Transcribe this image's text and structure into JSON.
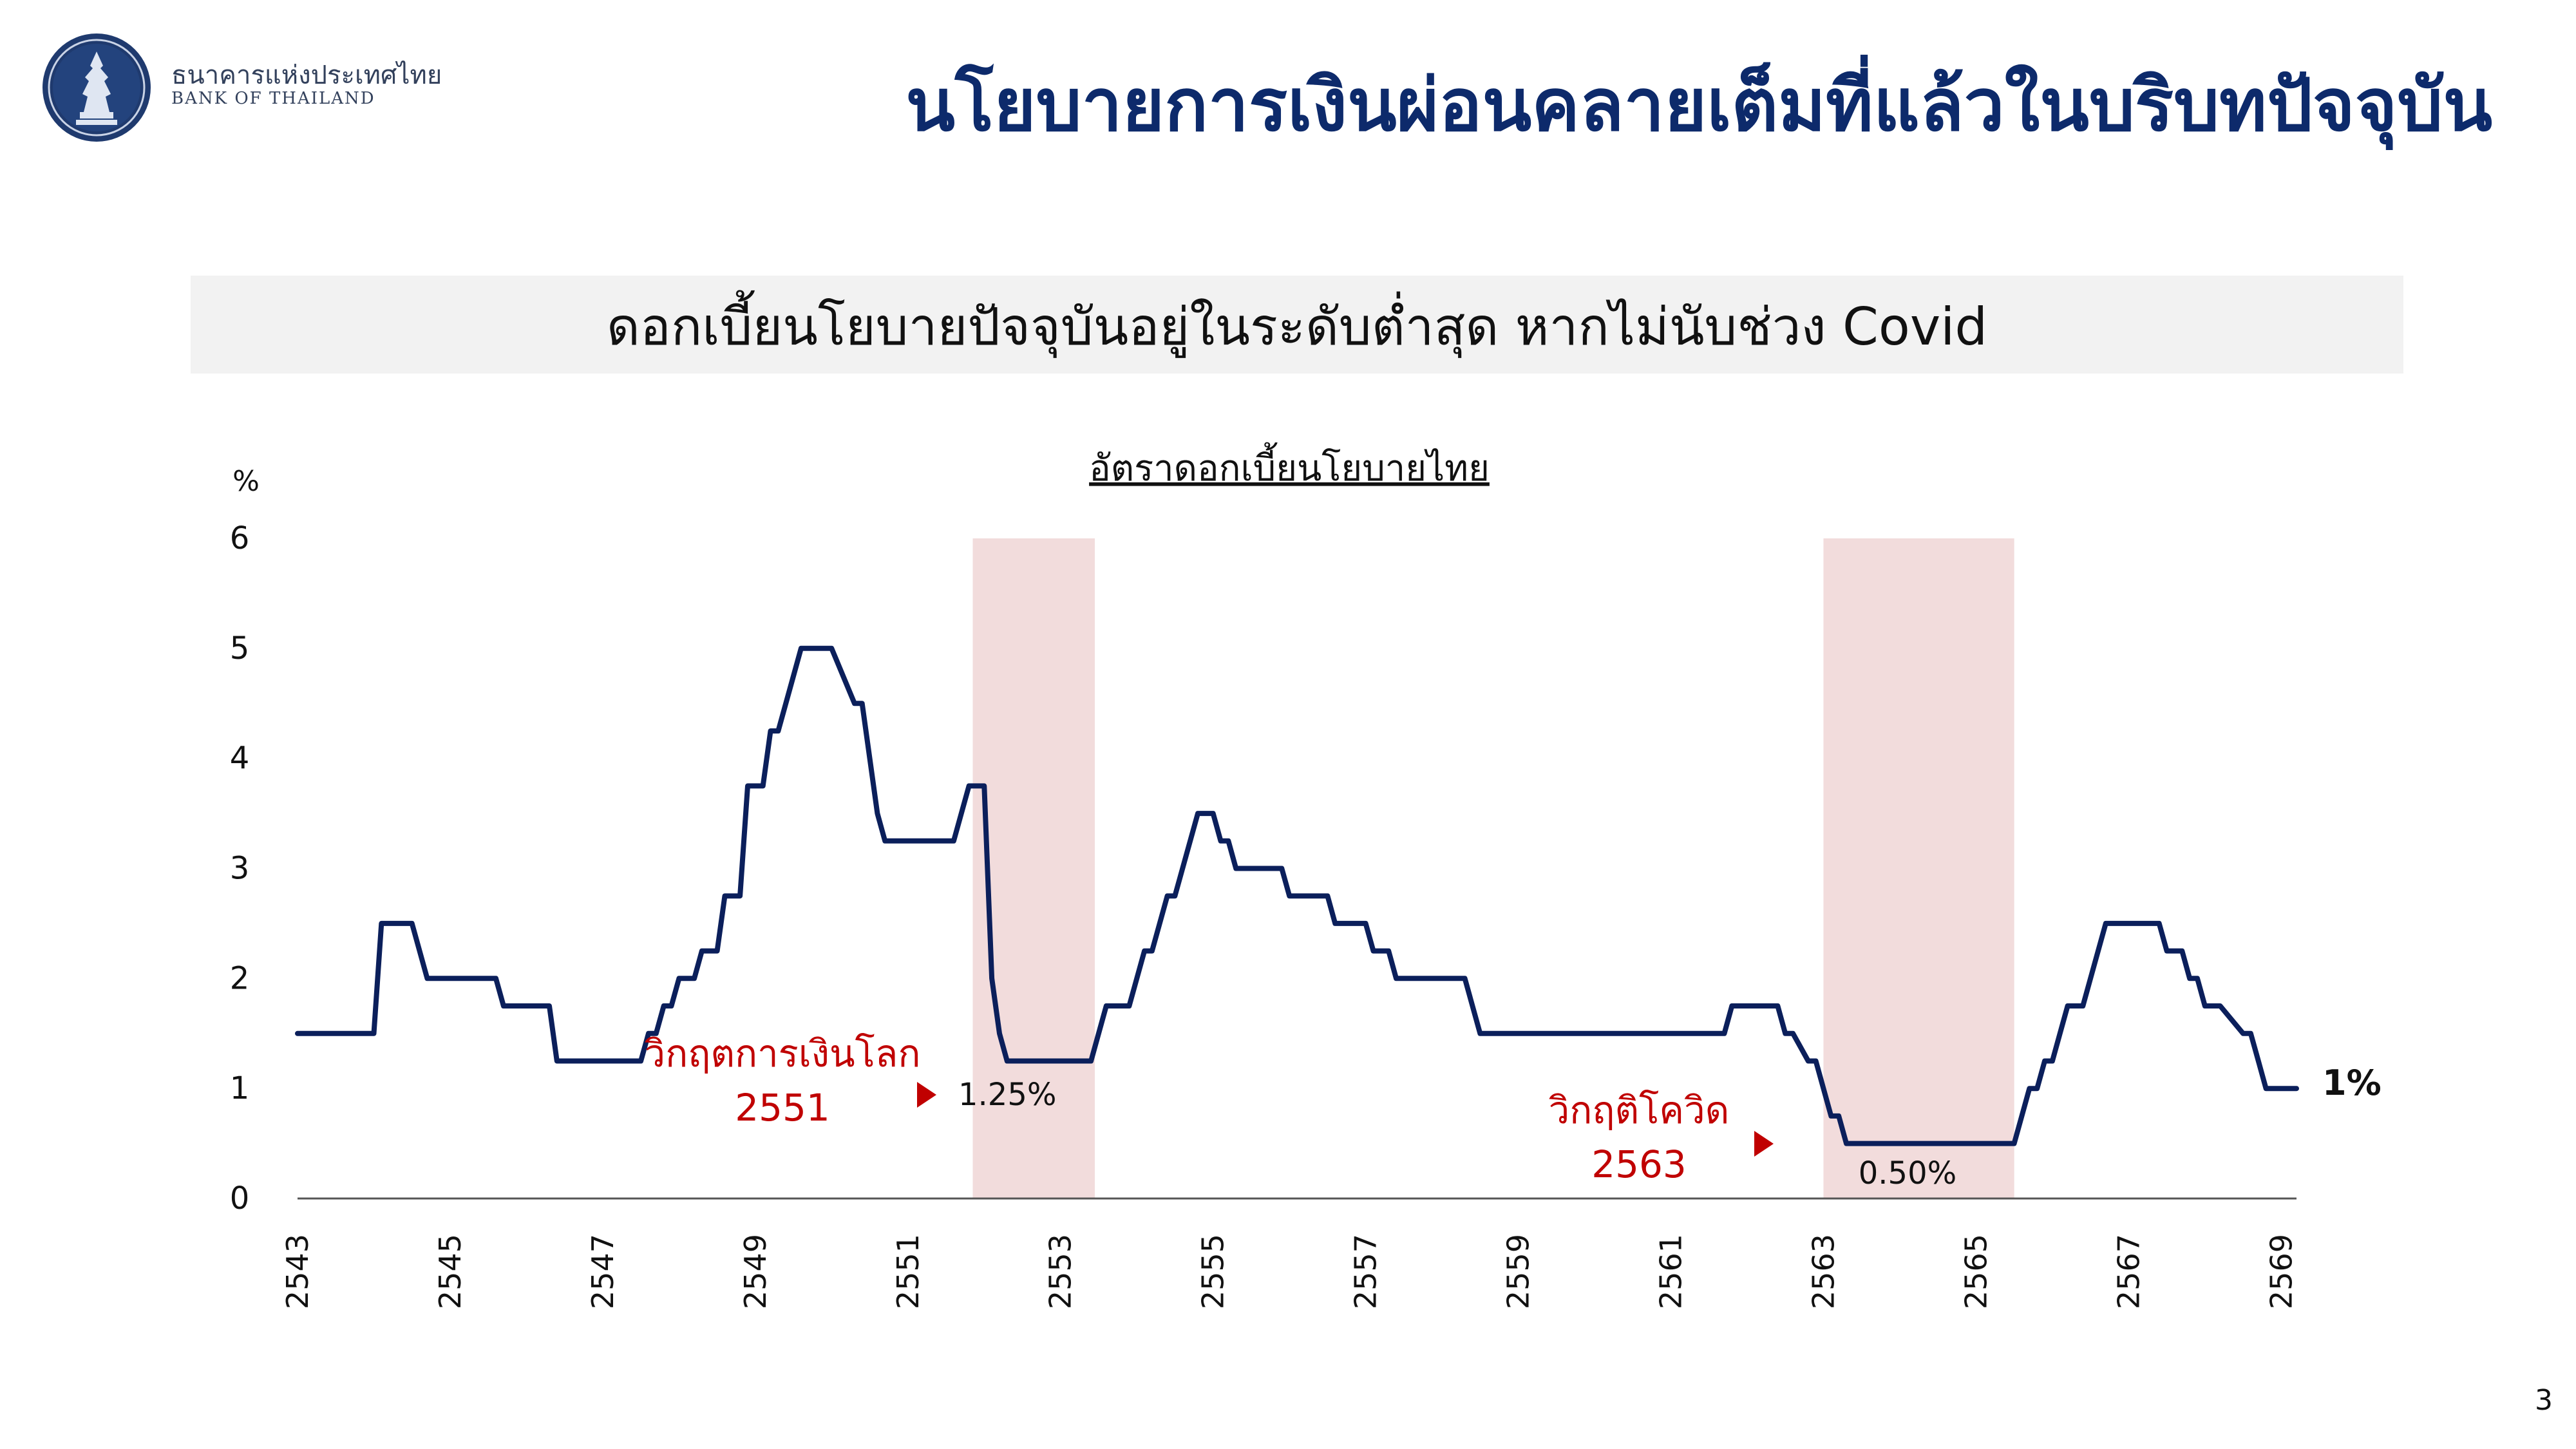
{
  "header": {
    "org_name_th": "ธนาคารแห่งประเทศไทย",
    "org_name_en": "BANK OF THAILAND",
    "title": "นโยบายการเงินผ่อนคลายเต็มที่แล้วในบริบทปัจจุบัน"
  },
  "banner": {
    "text": "ดอกเบี้ยนโยบายปัจจุบันอยู่ในระดับต่ำสุด หากไม่นับช่วง Covid"
  },
  "page_number": "3",
  "colors": {
    "line": "#0b1f5b",
    "shade": "#f2dcdc",
    "annotation": "#c00000",
    "title": "#0d2a6b"
  },
  "chart_data": {
    "type": "line",
    "title": "อัตราดอกเบี้ยนโยบายไทย",
    "ylabel": "%",
    "xlabel": "",
    "ylim": [
      0,
      6
    ],
    "yticks": [
      0,
      1,
      2,
      3,
      4,
      5,
      6
    ],
    "xlim": [
      2543,
      2569.2
    ],
    "xticks": [
      "2543",
      "2545",
      "2547",
      "2549",
      "2551",
      "2553",
      "2555",
      "2557",
      "2559",
      "2561",
      "2563",
      "2565",
      "2567",
      "2569"
    ],
    "grid": false,
    "shaded_periods": [
      {
        "start": 2551.85,
        "end": 2553.45
      },
      {
        "start": 2563.0,
        "end": 2565.5
      }
    ],
    "annotations": [
      {
        "lines": [
          "วิกฤตการเงินโลก",
          "2551"
        ],
        "x": 2551.85,
        "y": 0.95,
        "value_label": "1.25%"
      },
      {
        "lines": [
          "วิกฤติโควิด",
          "2563"
        ],
        "x": 2563.0,
        "y": 0.5,
        "value_label": "0.50%"
      }
    ],
    "end_label": "1%",
    "series": [
      {
        "x": [
          2543.0,
          2544.0,
          2544.1,
          2544.5,
          2544.7,
          2545.6,
          2545.7,
          2546.3,
          2546.4,
          2547.5,
          2547.6,
          2547.7,
          2547.8,
          2547.9,
          2548.0,
          2548.2,
          2548.3,
          2548.5,
          2548.6,
          2548.8,
          2548.9,
          2549.1,
          2549.2,
          2549.3,
          2549.5,
          2549.6,
          2550.0,
          2550.3,
          2550.4,
          2550.6,
          2550.7,
          2551.6,
          2551.8,
          2552.0,
          2552.1,
          2552.2,
          2552.3,
          2553.4,
          2553.6,
          2553.9,
          2554.1,
          2554.2,
          2554.4,
          2554.5,
          2554.8,
          2555.0,
          2555.1,
          2555.2,
          2555.3,
          2555.9,
          2556.0,
          2556.5,
          2556.6,
          2557.0,
          2557.1,
          2557.3,
          2557.4,
          2558.3,
          2558.5,
          2561.7,
          2561.8,
          2562.4,
          2562.5,
          2562.6,
          2562.8,
          2562.9,
          2563.1,
          2563.2,
          2563.3,
          2565.5,
          2565.7,
          2565.8,
          2565.9,
          2566.0,
          2566.1,
          2566.2,
          2566.4,
          2566.5,
          2566.7,
          2567.4,
          2567.5,
          2567.7,
          2567.8,
          2567.9,
          2568.0,
          2568.2,
          2568.5,
          2568.6,
          2568.7,
          2568.8,
          2569.2
        ],
        "y": [
          1.5,
          1.5,
          2.5,
          2.5,
          2.0,
          2.0,
          1.75,
          1.75,
          1.25,
          1.25,
          1.5,
          1.5,
          1.75,
          1.75,
          2.0,
          2.0,
          2.25,
          2.25,
          2.75,
          2.75,
          3.75,
          3.75,
          4.25,
          4.25,
          4.75,
          5.0,
          5.0,
          4.5,
          4.5,
          3.5,
          3.25,
          3.25,
          3.75,
          3.75,
          2.0,
          1.5,
          1.25,
          1.25,
          1.75,
          1.75,
          2.25,
          2.25,
          2.75,
          2.75,
          3.5,
          3.5,
          3.25,
          3.25,
          3.0,
          3.0,
          2.75,
          2.75,
          2.5,
          2.5,
          2.25,
          2.25,
          2.0,
          2.0,
          1.5,
          1.5,
          1.75,
          1.75,
          1.5,
          1.5,
          1.25,
          1.25,
          0.75,
          0.75,
          0.5,
          0.5,
          1.0,
          1.0,
          1.25,
          1.25,
          1.5,
          1.75,
          1.75,
          2.0,
          2.5,
          2.5,
          2.25,
          2.25,
          2.0,
          2.0,
          1.75,
          1.75,
          1.5,
          1.5,
          1.25,
          1.0,
          1.0
        ]
      }
    ]
  }
}
